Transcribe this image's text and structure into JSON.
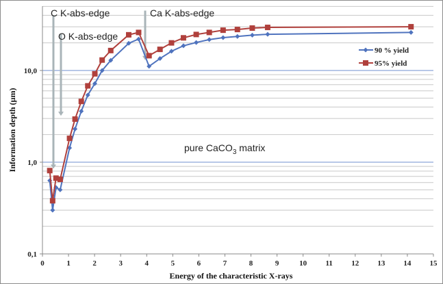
{
  "chart_data": {
    "type": "line",
    "title": "",
    "xlabel": "Energy of the characteristic X-rays",
    "ylabel": "Information depth (µm)",
    "xlim": [
      0,
      15
    ],
    "ylim": [
      0.1,
      50
    ],
    "yscale": "log",
    "grid": true,
    "legend_position": "right",
    "x_ticks": [
      "0",
      "1",
      "2",
      "3",
      "4",
      "5",
      "6",
      "7",
      "8",
      "9",
      "10",
      "11",
      "12",
      "13",
      "14",
      "15"
    ],
    "y_ticks": [
      "0,1",
      "1,0",
      "10,0"
    ],
    "x": [
      0.28,
      0.39,
      0.52,
      0.68,
      1.04,
      1.25,
      1.49,
      1.74,
      2.01,
      2.29,
      2.62,
      3.31,
      3.69,
      4.09,
      4.51,
      4.95,
      5.41,
      5.9,
      6.4,
      6.93,
      7.48,
      8.05,
      8.64,
      14.14
    ],
    "series": [
      {
        "name": "90 % yield",
        "color": "#4f73be",
        "marker": "diamond",
        "values": [
          0.63,
          0.3,
          0.53,
          0.5,
          1.43,
          2.3,
          3.6,
          5.4,
          7.2,
          10.0,
          12.9,
          19.8,
          22.0,
          11.1,
          13.5,
          16.2,
          18.6,
          20.2,
          21.7,
          22.8,
          23.5,
          24.3,
          24.8,
          26.0
        ]
      },
      {
        "name": "95% yield",
        "color": "#b0403c",
        "marker": "square",
        "values": [
          0.81,
          0.38,
          0.67,
          0.65,
          1.82,
          2.95,
          4.6,
          6.8,
          9.2,
          13.0,
          16.5,
          24.5,
          26.0,
          14.5,
          17.0,
          20.0,
          22.7,
          24.7,
          26.0,
          27.5,
          28.0,
          29.0,
          29.5,
          30.0
        ]
      }
    ],
    "annotations": [
      {
        "text": "C K-abs-edge",
        "x": 0.4,
        "arrow_y": [
          40,
          0.85
        ]
      },
      {
        "text": "O K-abs-edge",
        "x": 0.7,
        "arrow_y": [
          25,
          3.2
        ]
      },
      {
        "text": "Ca K-abs-edge",
        "x": 4.0,
        "arrow_y": [
          45,
          13
        ]
      }
    ],
    "matrix_label_prefix": "pure CaCO",
    "matrix_label_sub": "3",
    "matrix_label_suffix": " matrix"
  }
}
